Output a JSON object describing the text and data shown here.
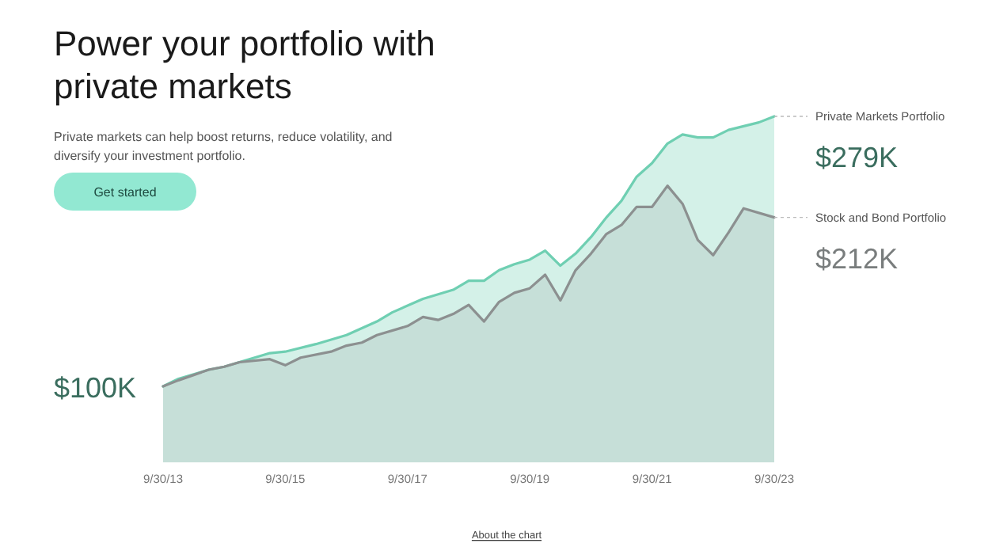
{
  "chart_data": {
    "type": "area",
    "title": "Power your portfolio with private markets",
    "subtitle": "Private markets can help boost returns, reduce volatility, and diversify your investment portfolio.",
    "annotations": [
      "Get started",
      "About the chart"
    ],
    "xlim": [
      "2013-09-30",
      "2023-09-30"
    ],
    "xticks": [
      {
        "value": "2013-09-30",
        "label": "9/30/13"
      },
      {
        "value": "2015-09-30",
        "label": "9/30/15"
      },
      {
        "value": "2017-09-30",
        "label": "9/30/17"
      },
      {
        "value": "2019-09-30",
        "label": "9/30/19"
      },
      {
        "value": "2021-09-30",
        "label": "9/30/21"
      },
      {
        "value": "2023-09-30",
        "label": "9/30/23"
      }
    ],
    "tick_labels": "x",
    "series": [
      {
        "name": "Private Markets Portfolio",
        "color": "#6fcfb2",
        "x": [
          "2013-09-30",
          "2013-12-31",
          "2014-06-30",
          "2014-09-30",
          "2015-06-30",
          "2015-09-30",
          "2016-03-31",
          "2016-09-30",
          "2017-03-31",
          "2017-06-30",
          "2017-12-31",
          "2018-06-30",
          "2018-09-30",
          "2018-12-31",
          "2019-03-31",
          "2019-06-30",
          "2019-09-30",
          "2019-12-31",
          "2020-03-31",
          "2020-06-30",
          "2020-09-30",
          "2020-12-31",
          "2021-03-31",
          "2021-06-30",
          "2021-09-30",
          "2021-12-31",
          "2022-03-31",
          "2022-06-30",
          "2022-09-30",
          "2022-12-31",
          "2023-06-30",
          "2023-09-30"
        ],
        "values": [
          100,
          105,
          111,
          113,
          122,
          123,
          128,
          134,
          143,
          149,
          158,
          164,
          170,
          170,
          177,
          181,
          184,
          190,
          180,
          188,
          199,
          212,
          223,
          239,
          248,
          261,
          267,
          265,
          265,
          270,
          275,
          279
        ],
        "value_labels": [
          "$100K",
          null,
          null,
          null,
          null,
          null,
          null,
          null,
          null,
          null,
          null,
          null,
          null,
          null,
          null,
          null,
          null,
          null,
          null,
          null,
          null,
          null,
          null,
          null,
          null,
          null,
          null,
          null,
          null,
          null,
          null,
          "$279K"
        ]
      },
      {
        "name": "Stock and Bond Portfolio",
        "color": "#8c9090",
        "x": [
          "2013-09-30",
          "2013-12-31",
          "2014-06-30",
          "2014-09-30",
          "2014-12-31",
          "2015-06-30",
          "2015-09-30",
          "2015-12-31",
          "2016-06-30",
          "2016-09-30",
          "2016-12-31",
          "2017-03-31",
          "2017-09-30",
          "2017-12-31",
          "2018-03-31",
          "2018-06-30",
          "2018-09-30",
          "2018-12-31",
          "2019-03-31",
          "2019-06-30",
          "2019-09-30",
          "2019-12-31",
          "2020-03-31",
          "2020-06-30",
          "2020-09-30",
          "2020-12-31",
          "2021-03-31",
          "2021-06-30",
          "2021-09-30",
          "2021-12-31",
          "2022-03-31",
          "2022-06-30",
          "2022-09-30",
          "2022-12-31",
          "2023-03-31",
          "2023-09-30"
        ],
        "values": [
          100,
          104,
          111,
          113,
          116,
          118,
          114,
          119,
          123,
          127,
          129,
          134,
          140,
          146,
          144,
          148,
          154,
          143,
          156,
          162,
          165,
          174,
          157,
          177,
          188,
          201,
          207,
          219,
          219,
          233,
          221,
          197,
          187,
          202,
          218,
          212
        ],
        "value_labels": [
          null,
          null,
          null,
          null,
          null,
          null,
          null,
          null,
          null,
          null,
          null,
          null,
          null,
          null,
          null,
          null,
          null,
          null,
          null,
          null,
          null,
          null,
          null,
          null,
          null,
          null,
          null,
          null,
          null,
          null,
          null,
          null,
          null,
          null,
          null,
          "$212K"
        ]
      }
    ]
  }
}
